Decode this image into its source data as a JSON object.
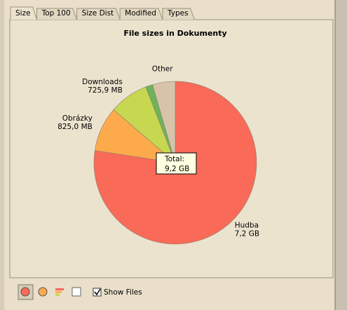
{
  "tabs": [
    "Size",
    "Top 100",
    "Size Dist",
    "Modified",
    "Types"
  ],
  "chart_data": {
    "type": "pie",
    "title": "File sizes in Dokumenty",
    "categories": [
      "Hudba",
      "Obrázky",
      "Downloads",
      null,
      "Other"
    ],
    "values": [
      7200,
      825,
      725.9,
      130,
      420
    ],
    "value_labels": [
      "7,2 GB",
      "825,0 MB",
      "725,9 MB",
      null,
      null
    ],
    "colors": [
      "#f96a58",
      "#fdaa4c",
      "#c8d750",
      "#6db35a",
      "#d8c3a8"
    ],
    "total_label": "Total:",
    "total_value": "9,2 GB"
  },
  "toolbar": {
    "checkbox": "Show Files"
  }
}
